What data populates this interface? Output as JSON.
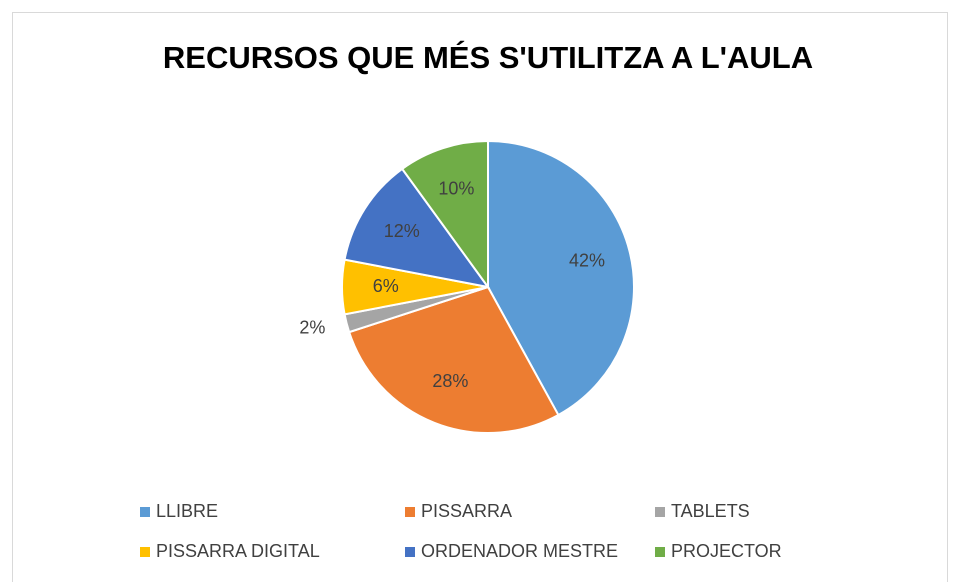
{
  "chart_data": {
    "type": "pie",
    "title": "RECURSOS QUE MÉS S'UTILITZA A L'AULA",
    "categories": [
      "LLIBRE",
      "PISSARRA",
      "TABLETS",
      "PISSARRA DIGITAL",
      "ORDENADOR MESTRE",
      "PROJECTOR"
    ],
    "values": [
      42,
      28,
      2,
      6,
      12,
      10
    ],
    "value_labels": [
      "42%",
      "28%",
      "2%",
      "6%",
      "12%",
      "10%"
    ],
    "colors": [
      "#5b9bd5",
      "#ed7d31",
      "#a5a5a5",
      "#ffc000",
      "#4472c4",
      "#70ad47"
    ],
    "legend": "bottom"
  }
}
